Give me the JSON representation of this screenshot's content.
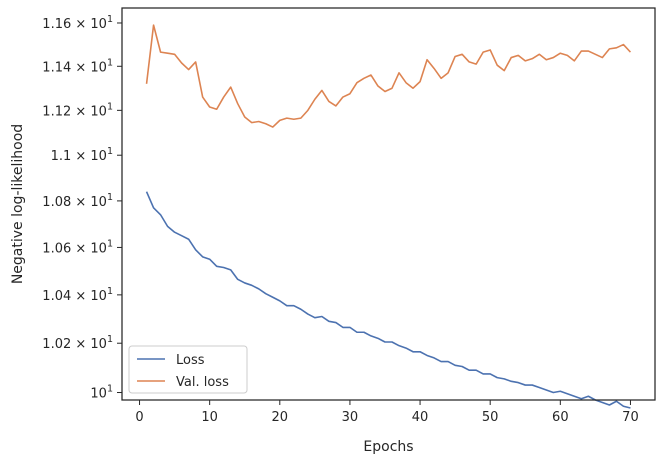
{
  "chart_data": {
    "type": "line",
    "xlabel": "Epochs",
    "ylabel": "Negative log-likelihood",
    "xlim": [
      -2.5,
      73.5
    ],
    "ylim": [
      9.97,
      11.67
    ],
    "yscale": "log",
    "grid": false,
    "legend_position": "lower-left",
    "x_ticks": [
      {
        "value": 0,
        "label": "0"
      },
      {
        "value": 10,
        "label": "10"
      },
      {
        "value": 20,
        "label": "20"
      },
      {
        "value": 30,
        "label": "30"
      },
      {
        "value": 40,
        "label": "40"
      },
      {
        "value": 50,
        "label": "50"
      },
      {
        "value": 60,
        "label": "60"
      },
      {
        "value": 70,
        "label": "70"
      }
    ],
    "y_ticks": [
      {
        "value": 10.0,
        "mant": "10",
        "exp": "1"
      },
      {
        "value": 10.2,
        "mant": "1.02 × 10",
        "exp": "1"
      },
      {
        "value": 10.4,
        "mant": "1.04 × 10",
        "exp": "1"
      },
      {
        "value": 10.6,
        "mant": "1.06 × 10",
        "exp": "1"
      },
      {
        "value": 10.8,
        "mant": "1.08 × 10",
        "exp": "1"
      },
      {
        "value": 11.0,
        "mant": "1.1 × 10",
        "exp": "1"
      },
      {
        "value": 11.2,
        "mant": "1.12 × 10",
        "exp": "1"
      },
      {
        "value": 11.4,
        "mant": "1.14 × 10",
        "exp": "1"
      },
      {
        "value": 11.6,
        "mant": "1.16 × 10",
        "exp": "1"
      }
    ],
    "x": [
      1,
      2,
      3,
      4,
      5,
      6,
      7,
      8,
      9,
      10,
      11,
      12,
      13,
      14,
      15,
      16,
      17,
      18,
      19,
      20,
      21,
      22,
      23,
      24,
      25,
      26,
      27,
      28,
      29,
      30,
      31,
      32,
      33,
      34,
      35,
      36,
      37,
      38,
      39,
      40,
      41,
      42,
      43,
      44,
      45,
      46,
      47,
      48,
      49,
      50,
      51,
      52,
      53,
      54,
      55,
      56,
      57,
      58,
      59,
      60,
      61,
      62,
      63,
      64,
      65,
      66,
      67,
      68,
      69,
      70
    ],
    "series": [
      {
        "name": "Loss",
        "color": "#4c72b0",
        "values": [
          10.84,
          10.77,
          10.74,
          10.69,
          10.665,
          10.65,
          10.635,
          10.59,
          10.56,
          10.55,
          10.52,
          10.515,
          10.505,
          10.465,
          10.45,
          10.44,
          10.425,
          10.405,
          10.39,
          10.375,
          10.355,
          10.355,
          10.34,
          10.32,
          10.305,
          10.31,
          10.29,
          10.285,
          10.265,
          10.265,
          10.245,
          10.245,
          10.23,
          10.22,
          10.205,
          10.205,
          10.19,
          10.18,
          10.165,
          10.165,
          10.15,
          10.14,
          10.125,
          10.125,
          10.11,
          10.105,
          10.09,
          10.09,
          10.075,
          10.075,
          10.06,
          10.055,
          10.045,
          10.04,
          10.03,
          10.03,
          10.02,
          10.01,
          10.0,
          10.005,
          9.995,
          9.985,
          9.975,
          9.985,
          9.97,
          9.96,
          9.95,
          9.965,
          9.945,
          9.938
        ]
      },
      {
        "name": "Val. loss",
        "color": "#dd8452",
        "values": [
          11.32,
          11.59,
          11.465,
          11.46,
          11.455,
          11.415,
          11.385,
          11.42,
          11.26,
          11.215,
          11.205,
          11.26,
          11.305,
          11.23,
          11.17,
          11.145,
          11.15,
          11.14,
          11.125,
          11.155,
          11.165,
          11.16,
          11.165,
          11.2,
          11.25,
          11.29,
          11.24,
          11.22,
          11.26,
          11.275,
          11.325,
          11.345,
          11.36,
          11.31,
          11.285,
          11.3,
          11.37,
          11.325,
          11.3,
          11.33,
          11.43,
          11.39,
          11.345,
          11.37,
          11.445,
          11.455,
          11.42,
          11.41,
          11.465,
          11.475,
          11.405,
          11.38,
          11.44,
          11.45,
          11.425,
          11.435,
          11.455,
          11.43,
          11.44,
          11.46,
          11.45,
          11.425,
          11.47,
          11.47,
          11.455,
          11.44,
          11.48,
          11.485,
          11.5,
          11.465
        ]
      }
    ]
  }
}
